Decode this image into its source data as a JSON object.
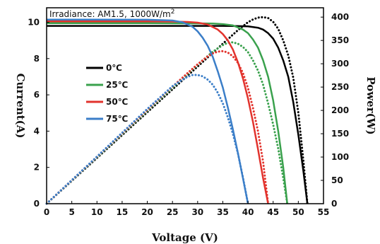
{
  "chart_data": {
    "type": "line",
    "annotation": {
      "prefix": "Irradiance: AM1.5,  1000W/m",
      "superscript": "2"
    },
    "xlabel": "Voltage (V)",
    "ylabel_left": "Current(A)",
    "ylabel_right": "Power(W)",
    "xlim": [
      0,
      55
    ],
    "ylim_left": [
      0,
      10.8
    ],
    "ylim_right": [
      0,
      420
    ],
    "x_ticks": [
      0,
      5,
      10,
      15,
      20,
      25,
      30,
      35,
      40,
      45,
      50,
      55
    ],
    "y_left_ticks": [
      0,
      2,
      4,
      6,
      8,
      10
    ],
    "y_right_ticks": [
      0,
      50,
      100,
      150,
      200,
      250,
      300,
      350,
      400
    ],
    "x_tick_labels": [
      "0",
      "5",
      "10",
      "15",
      "20",
      "25",
      "30",
      "35",
      "40",
      "45",
      "50",
      "55"
    ],
    "y_left_tick_labels": [
      "0",
      "2",
      "4",
      "6",
      "8",
      "10"
    ],
    "y_right_tick_labels": [
      "0",
      "50",
      "100",
      "150",
      "200",
      "250",
      "300",
      "350",
      "400"
    ],
    "legend_position": "left",
    "series": [
      {
        "name": "0℃",
        "color": "#000000",
        "current": {
          "x": [
            0,
            10,
            20,
            30,
            35,
            38,
            40,
            42,
            43,
            44,
            45,
            46,
            47,
            48,
            49,
            50,
            51,
            51.8
          ],
          "y": [
            9.8,
            9.8,
            9.8,
            9.8,
            9.8,
            9.79,
            9.78,
            9.7,
            9.6,
            9.4,
            9.1,
            8.6,
            7.9,
            7.0,
            5.6,
            3.8,
            1.8,
            0
          ]
        },
        "power": {
          "x": [
            0,
            10,
            20,
            30,
            35,
            38,
            40,
            41,
            42,
            43,
            44,
            45,
            46,
            47,
            48,
            49,
            50,
            51,
            51.8
          ],
          "y": [
            0,
            98,
            196,
            294,
            343,
            372,
            389,
            395,
            399,
            400,
            398,
            390,
            375,
            350,
            318,
            270,
            195,
            92,
            0
          ]
        }
      },
      {
        "name": "25℃",
        "color": "#3aa14d",
        "current": {
          "x": [
            0,
            10,
            20,
            30,
            33,
            35,
            37,
            39,
            40,
            41,
            42,
            43,
            44,
            45,
            46,
            47,
            47.8
          ],
          "y": [
            9.95,
            9.95,
            9.95,
            9.94,
            9.93,
            9.9,
            9.83,
            9.6,
            9.4,
            9.05,
            8.6,
            7.9,
            7.0,
            5.7,
            4.0,
            2.0,
            0
          ]
        },
        "power": {
          "x": [
            0,
            10,
            20,
            30,
            33,
            35,
            36,
            37,
            38,
            39,
            40,
            41,
            42,
            43,
            44,
            45,
            46,
            47,
            47.8
          ],
          "y": [
            0,
            99.5,
            199,
            298,
            326,
            340,
            345,
            346,
            343,
            336,
            325,
            307,
            285,
            255,
            215,
            170,
            118,
            55,
            0
          ]
        }
      },
      {
        "name": "50℃",
        "color": "#e2332d",
        "current": {
          "x": [
            0,
            10,
            20,
            25,
            28,
            30,
            32,
            34,
            35,
            36,
            37,
            38,
            39,
            40,
            41,
            42,
            43,
            44
          ],
          "y": [
            10.05,
            10.05,
            10.05,
            10.04,
            10.02,
            9.98,
            9.88,
            9.6,
            9.35,
            9.0,
            8.5,
            7.8,
            6.9,
            5.8,
            4.5,
            3.0,
            1.4,
            0
          ]
        },
        "power": {
          "x": [
            0,
            10,
            20,
            25,
            28,
            30,
            32,
            33,
            34,
            35,
            36,
            37,
            38,
            39,
            40,
            41,
            42,
            43,
            44
          ],
          "y": [
            0,
            100.5,
            201,
            251,
            280,
            299,
            316,
            322,
            326,
            327,
            324,
            316,
            302,
            280,
            248,
            205,
            155,
            90,
            0
          ]
        }
      },
      {
        "name": "75℃",
        "color": "#3b7ec8",
        "current": {
          "x": [
            0,
            10,
            20,
            25,
            27,
            29,
            30,
            31,
            32,
            33,
            34,
            35,
            36,
            37,
            38,
            39,
            40
          ],
          "y": [
            10.15,
            10.15,
            10.14,
            10.1,
            10.0,
            9.75,
            9.5,
            9.15,
            8.7,
            8.1,
            7.3,
            6.4,
            5.3,
            4.1,
            2.8,
            1.4,
            0
          ]
        },
        "power": {
          "x": [
            0,
            10,
            20,
            25,
            27,
            28,
            29,
            30,
            31,
            32,
            33,
            34,
            35,
            36,
            37,
            38,
            39,
            40
          ],
          "y": [
            0,
            101,
            203,
            252,
            266,
            272,
            276,
            276,
            273,
            266,
            255,
            238,
            215,
            185,
            150,
            108,
            56,
            0
          ]
        }
      }
    ]
  }
}
